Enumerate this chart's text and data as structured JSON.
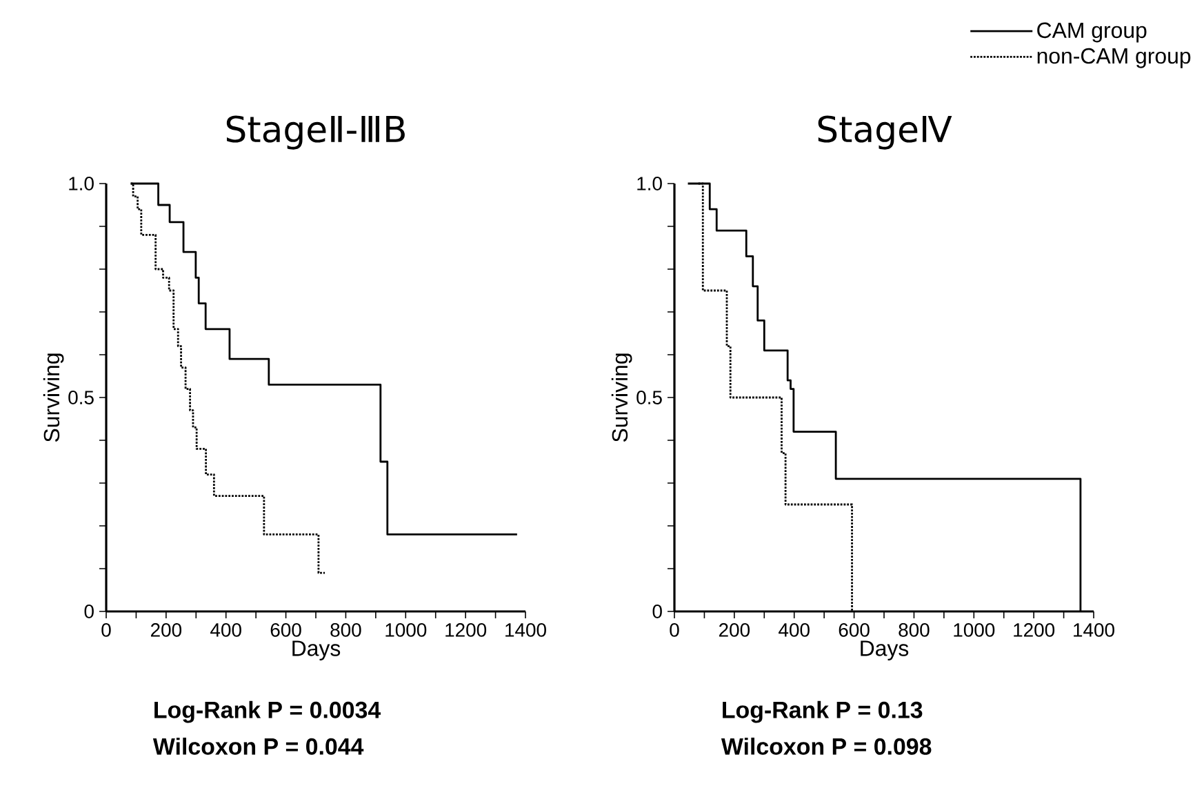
{
  "chart_data": [
    {
      "type": "step",
      "title": "StageⅡ-ⅢB",
      "xlabel": "Days",
      "ylabel": "Surviving",
      "xlim": [
        0,
        1400
      ],
      "ylim": [
        0,
        1
      ],
      "xticks": [
        0,
        {
          "value": 100,
          "label": null
        },
        200,
        {
          "value": 300,
          "label": null
        },
        400,
        {
          "value": 500,
          "label": null
        },
        600,
        {
          "value": 700,
          "label": null
        },
        800,
        {
          "value": 900,
          "label": null
        },
        1000,
        {
          "value": 1100,
          "label": null
        },
        1200,
        {
          "value": 1300,
          "label": null
        },
        1400
      ],
      "yticks": [
        0,
        {
          "value": 0.1,
          "label": null
        },
        {
          "value": 0.2,
          "label": null
        },
        {
          "value": 0.3,
          "label": null
        },
        {
          "value": 0.4,
          "label": null
        },
        0.5,
        {
          "value": 0.6,
          "label": null
        },
        {
          "value": 0.7,
          "label": null
        },
        {
          "value": 0.8,
          "label": null
        },
        {
          "value": 0.9,
          "label": null
        },
        {
          "value": 1,
          "label": "1.0"
        }
      ],
      "series": [
        {
          "color": "#000000",
          "line_style": "solid",
          "x": [
            82,
            174,
            212,
            258,
            299,
            309,
            332,
            412,
            543,
            916,
            939,
            1372
          ],
          "values": [
            1.0,
            0.95,
            0.91,
            0.84,
            0.78,
            0.72,
            0.66,
            0.59,
            0.53,
            0.35,
            0.18,
            0.18
          ]
        },
        {
          "color": "#000000",
          "line_style": "dotted",
          "x": [
            82,
            90,
            105,
            117,
            165,
            190,
            210,
            225,
            240,
            250,
            265,
            280,
            290,
            302,
            333,
            360,
            527,
            709,
            730
          ],
          "values": [
            1.0,
            0.97,
            0.94,
            0.88,
            0.8,
            0.78,
            0.75,
            0.66,
            0.62,
            0.57,
            0.52,
            0.47,
            0.43,
            0.38,
            0.32,
            0.27,
            0.18,
            0.09,
            0.09
          ]
        }
      ],
      "annotations": [
        "Log-Rank P = 0.0034",
        "Wilcoxon P = 0.044"
      ]
    },
    {
      "type": "step",
      "title": "StageⅣ",
      "xlabel": "Days",
      "ylabel": "Surviving",
      "xlim": [
        0,
        1400
      ],
      "ylim": [
        0,
        1
      ],
      "xticks": [
        0,
        {
          "value": 100,
          "label": null
        },
        200,
        {
          "value": 300,
          "label": null
        },
        400,
        {
          "value": 500,
          "label": null
        },
        600,
        {
          "value": 700,
          "label": null
        },
        800,
        {
          "value": 900,
          "label": null
        },
        1000,
        {
          "value": 1100,
          "label": null
        },
        1200,
        {
          "value": 1300,
          "label": null
        },
        1400
      ],
      "yticks": [
        0,
        {
          "value": 0.1,
          "label": null
        },
        {
          "value": 0.2,
          "label": null
        },
        {
          "value": 0.3,
          "label": null
        },
        {
          "value": 0.4,
          "label": null
        },
        0.5,
        {
          "value": 0.6,
          "label": null
        },
        {
          "value": 0.7,
          "label": null
        },
        {
          "value": 0.8,
          "label": null
        },
        {
          "value": 0.9,
          "label": null
        },
        {
          "value": 1,
          "label": "1.0"
        }
      ],
      "legend": "top right",
      "series": [
        {
          "name": "CAM group",
          "color": "#000000",
          "line_style": "solid",
          "x": [
            45,
            118,
            141,
            240,
            262,
            278,
            300,
            378,
            388,
            398,
            539,
            1356
          ],
          "values": [
            1.0,
            0.94,
            0.89,
            0.83,
            0.76,
            0.68,
            0.61,
            0.54,
            0.52,
            0.42,
            0.31,
            0.0
          ]
        },
        {
          "name": "non-CAM group",
          "color": "#000000",
          "line_style": "dotted",
          "x": [
            80,
            95,
            175,
            187,
            358,
            371,
            593
          ],
          "values": [
            1.0,
            0.75,
            0.62,
            0.5,
            0.37,
            0.25,
            0.0
          ]
        }
      ],
      "annotations": [
        "Log-Rank P = 0.13",
        "Wilcoxon P = 0.098"
      ]
    }
  ]
}
